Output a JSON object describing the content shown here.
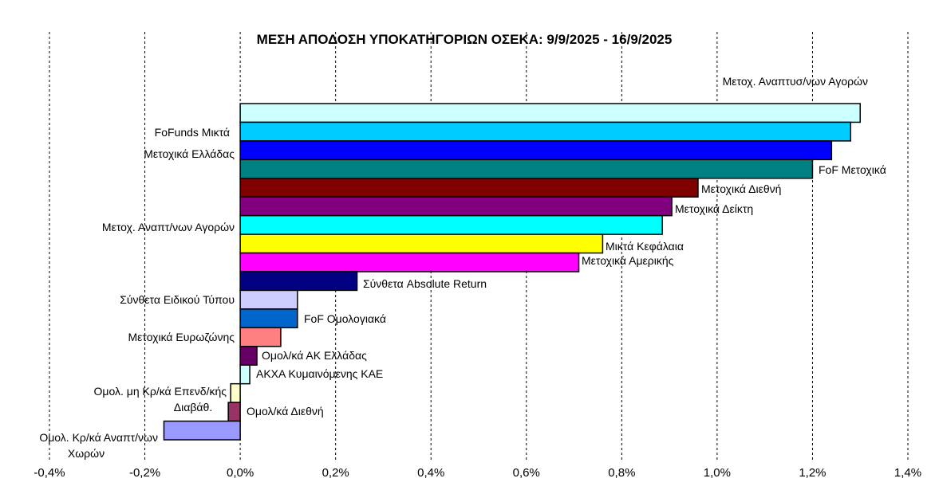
{
  "chart_data": {
    "type": "bar",
    "orientation": "horizontal",
    "title": "ΜΕΣΗ ΑΠΟΔΟΣΗ ΥΠΟΚΑΤΗΓΟΡΙΩΝ ΟΣΕΚΑ: 9/9/2025 - 16/9/2025",
    "xlim": [
      -0.4,
      1.4
    ],
    "x_ticks": [
      "-0,4%",
      "-0,2%",
      "0,0%",
      "0,2%",
      "0,4%",
      "0,6%",
      "0,8%",
      "1,0%",
      "1,2%",
      "1,4%"
    ],
    "grid": "vertical dashed",
    "bars": [
      {
        "label": "Μετοχ. Αναπτυσ/νων Αγορών",
        "value": 1.3,
        "color": "#ccffff"
      },
      {
        "label": "FoFunds Μικτά",
        "value": 1.28,
        "color": "#00ccff"
      },
      {
        "label": "Μετοχικά Ελλάδας",
        "value": 1.24,
        "color": "#0000ff"
      },
      {
        "label": "FoF Μετοχικά",
        "value": 1.2,
        "color": "#008080"
      },
      {
        "label": "Μετοχικά Διεθνή",
        "value": 0.96,
        "color": "#800000"
      },
      {
        "label": "Μετοχικά Δείκτη",
        "value": 0.905,
        "color": "#800080"
      },
      {
        "label": "Μετοχ. Αναπτ/νων Αγορών",
        "value": 0.885,
        "color": "#00ffff"
      },
      {
        "label": "Μικτά Κεφάλαια",
        "value": 0.76,
        "color": "#ffff00"
      },
      {
        "label": "Μετοχικά Αμερικής",
        "value": 0.71,
        "color": "#ff00ff"
      },
      {
        "label": "Σύνθετα Absolute Return",
        "value": 0.245,
        "color": "#000080"
      },
      {
        "label": "Σύνθετα Ειδικού Τύπου",
        "value": 0.12,
        "color": "#ccccff"
      },
      {
        "label": "FoF Ομολογιακά",
        "value": 0.12,
        "color": "#0066cc"
      },
      {
        "label": "Μετοχικά Ευρωζώνης",
        "value": 0.085,
        "color": "#ff8080"
      },
      {
        "label": "Ομολ/κά ΑΚ Ελλάδας",
        "value": 0.035,
        "color": "#660066"
      },
      {
        "label": "ΑΚΧΑ Κυμαινόμενης ΚΑΕ",
        "value": 0.02,
        "color": "#ccffff"
      },
      {
        "label": "Ομολ. μη Κρ/κά Επενδ/κής Διαβάθ.",
        "value": -0.02,
        "color": "#ffffcc"
      },
      {
        "label": "Ομολ/κά Διεθνή",
        "value": -0.025,
        "color": "#993366"
      },
      {
        "label": "Ομολ. Κρ/κά Αναπτ/νων Χωρών",
        "value": -0.16,
        "color": "#9999ff"
      }
    ]
  }
}
